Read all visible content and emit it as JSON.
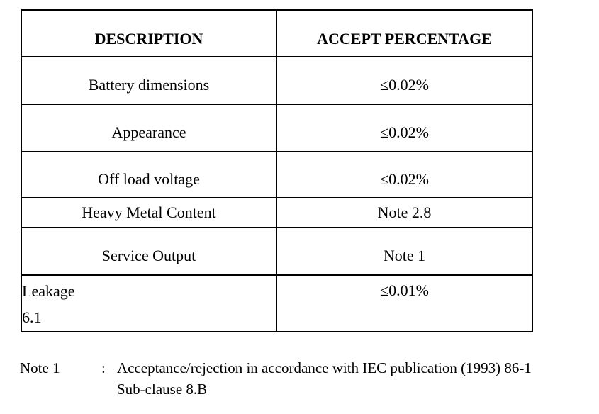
{
  "page": {
    "background": "#ffffff",
    "text_color": "#000000"
  },
  "table": {
    "headers": [
      "DESCRIPTION",
      "ACCEPT PERCENTAGE"
    ],
    "rows": [
      {
        "description": "Battery dimensions",
        "accept": "≤0.02%"
      },
      {
        "description": "Appearance",
        "accept": "≤0.02%"
      },
      {
        "description": "Off load voltage",
        "accept": "≤0.02%"
      },
      {
        "description": "Heavy Metal Content",
        "accept": "Note 2.8"
      },
      {
        "description": "Service Output",
        "accept": "Note 1"
      },
      {
        "description": "Leakage",
        "description_line2": "6.1",
        "accept": "≤0.01%"
      }
    ]
  },
  "note": {
    "label": "Note 1",
    "separator": ":",
    "line1": "Acceptance/rejection in accordance with IEC publication (1993) 86-1",
    "line2": "Sub-clause 8.B"
  }
}
